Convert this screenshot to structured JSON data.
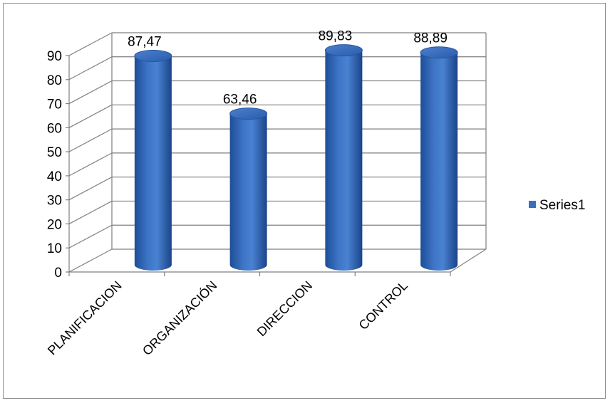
{
  "chart_data": {
    "type": "bar",
    "style": "3d-cylinder",
    "categories": [
      "PLANIFICACION",
      "ORGANIZACIÓN",
      "DIRECCION",
      "CONTROL"
    ],
    "series": [
      {
        "name": "Series1",
        "values": [
          87.47,
          63.46,
          89.83,
          88.89
        ],
        "data_labels": [
          "87,47",
          "63,46",
          "89,83",
          "88,89"
        ],
        "color": "#3a6fc0"
      }
    ],
    "yticks": [
      "0",
      "10",
      "20",
      "30",
      "40",
      "50",
      "60",
      "70",
      "80",
      "90"
    ],
    "ylim": [
      0,
      90
    ],
    "grid": true,
    "legend": "right"
  }
}
